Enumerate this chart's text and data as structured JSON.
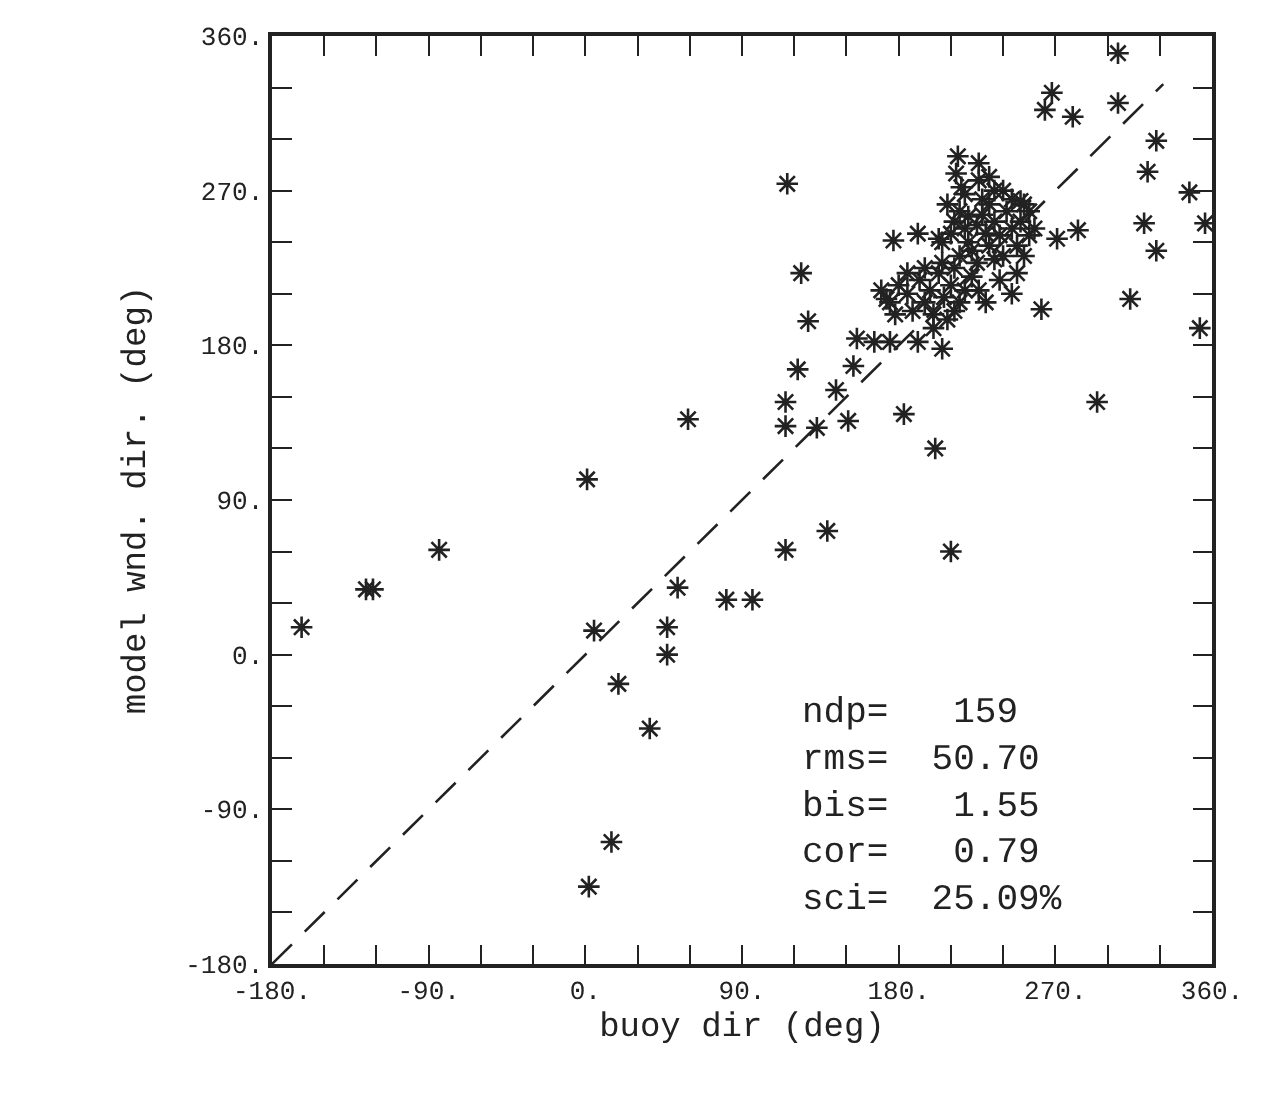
{
  "chart_data": {
    "type": "scatter",
    "xlabel": "buoy dir (deg)",
    "ylabel": "model wnd. dir. (deg)",
    "xlim": [
      -180,
      360
    ],
    "ylim": [
      -180,
      360
    ],
    "xticks": [
      {
        "value": -180,
        "label": "-180."
      },
      {
        "value": -150,
        "label": null
      },
      {
        "value": -120,
        "label": null
      },
      {
        "value": -90,
        "label": "-90."
      },
      {
        "value": -60,
        "label": null
      },
      {
        "value": -30,
        "label": null
      },
      {
        "value": 0,
        "label": "0."
      },
      {
        "value": 30,
        "label": null
      },
      {
        "value": 60,
        "label": null
      },
      {
        "value": 90,
        "label": "90."
      },
      {
        "value": 120,
        "label": null
      },
      {
        "value": 150,
        "label": null
      },
      {
        "value": 180,
        "label": "180."
      },
      {
        "value": 210,
        "label": null
      },
      {
        "value": 240,
        "label": null
      },
      {
        "value": 270,
        "label": "270."
      },
      {
        "value": 300,
        "label": null
      },
      {
        "value": 330,
        "label": null
      },
      {
        "value": 360,
        "label": "360."
      }
    ],
    "yticks": [
      {
        "value": -180,
        "label": "-180."
      },
      {
        "value": -150,
        "label": null
      },
      {
        "value": -120,
        "label": null
      },
      {
        "value": -90,
        "label": "-90."
      },
      {
        "value": -60,
        "label": null
      },
      {
        "value": -30,
        "label": null
      },
      {
        "value": 0,
        "label": "0."
      },
      {
        "value": 30,
        "label": null
      },
      {
        "value": 60,
        "label": null
      },
      {
        "value": 90,
        "label": "90."
      },
      {
        "value": 120,
        "label": null
      },
      {
        "value": 150,
        "label": null
      },
      {
        "value": 180,
        "label": "180."
      },
      {
        "value": 210,
        "label": null
      },
      {
        "value": 240,
        "label": null
      },
      {
        "value": 270,
        "label": "270."
      },
      {
        "value": 300,
        "label": null
      },
      {
        "value": 330,
        "label": null
      },
      {
        "value": 360,
        "label": "360."
      }
    ],
    "marker": "cross",
    "annotations": [
      "ndp=   159",
      "rms=  50.70",
      "bis=   1.55",
      "cor=   0.79",
      "sci=  25.09%"
    ],
    "series": [
      {
        "color": "#222222",
        "x": [
          306,
          268,
          264,
          280,
          306,
          328,
          323,
          347,
          356,
          321,
          328,
          313,
          353,
          294,
          271,
          283,
          262,
          116,
          124,
          128,
          122,
          115,
          115,
          59,
          1,
          -84,
          -122,
          115,
          139,
          210,
          201,
          183,
          151,
          133,
          144,
          154,
          156,
          166,
          191,
          205,
          177,
          191,
          203,
          214,
          226,
          232,
          250,
          173,
          175,
          -163,
          -126,
          5,
          53,
          81,
          96,
          47,
          47,
          19,
          37,
          15,
          2,
          205,
          210,
          212,
          215,
          218,
          220,
          222,
          225,
          228,
          230,
          232,
          235,
          238,
          240,
          242,
          245,
          215,
          225,
          235,
          248,
          250,
          252,
          208,
          218,
          228,
          240,
          245,
          255,
          220,
          232,
          213,
          216,
          226,
          235,
          255,
          258,
          252,
          248,
          238,
          245,
          170,
          175,
          180,
          185,
          188,
          192,
          195,
          198,
          200,
          203,
          206,
          208,
          210,
          212,
          215,
          205,
          195,
          185,
          178,
          200,
          212,
          218,
          222,
          226,
          230
        ],
        "values": [
          350,
          327,
          317,
          313,
          321,
          299,
          281,
          269,
          251,
          251,
          235,
          207,
          190,
          147,
          242,
          247,
          201,
          274,
          222,
          194,
          166,
          147,
          133,
          137,
          102,
          61,
          38,
          61,
          72,
          60,
          120,
          140,
          136,
          132,
          154,
          168,
          184,
          182,
          182,
          178,
          241,
          245,
          242,
          290,
          286,
          278,
          264,
          207,
          182,
          16,
          38,
          14,
          39,
          32,
          32,
          16,
          0,
          -17,
          -43,
          -109,
          -135,
          240,
          245,
          252,
          258,
          248,
          240,
          235,
          250,
          256,
          245,
          238,
          252,
          244,
          232,
          258,
          248,
          232,
          228,
          230,
          238,
          252,
          262,
          262,
          268,
          265,
          270,
          265,
          244,
          255,
          262,
          280,
          272,
          276,
          270,
          258,
          248,
          232,
          222,
          218,
          210,
          212,
          205,
          215,
          210,
          200,
          218,
          205,
          212,
          198,
          222,
          208,
          195,
          215,
          225,
          205,
          228,
          225,
          222,
          198,
          190,
          200,
          212,
          220,
          212,
          205
        ]
      },
      {
        "type": "line",
        "color": "#222222",
        "line_style": "dashed",
        "marker": "none",
        "x": [
          -180,
          332
        ],
        "values": [
          -180,
          332
        ]
      }
    ]
  }
}
